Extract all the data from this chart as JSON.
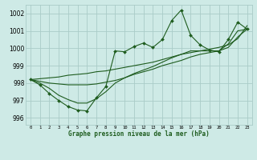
{
  "title": "Graphe pression niveau de la mer (hPa)",
  "background_color": "#ceeae6",
  "grid_color": "#aaccc8",
  "line_color": "#1e5c1e",
  "x_labels": [
    "0",
    "1",
    "2",
    "3",
    "4",
    "5",
    "6",
    "7",
    "8",
    "9",
    "10",
    "11",
    "12",
    "13",
    "14",
    "15",
    "16",
    "17",
    "18",
    "19",
    "20",
    "21",
    "22",
    "23"
  ],
  "ylim": [
    995.6,
    1002.5
  ],
  "yticks": [
    996,
    997,
    998,
    999,
    1000,
    1001,
    1002
  ],
  "main_series": [
    998.2,
    997.9,
    997.4,
    997.0,
    996.65,
    996.45,
    996.4,
    997.15,
    997.8,
    999.85,
    999.8,
    1000.1,
    1000.3,
    1000.05,
    1000.5,
    1001.6,
    1002.2,
    1000.75,
    1000.2,
    999.9,
    999.8,
    1000.5,
    1001.5,
    1001.1
  ],
  "trend_line1": [
    998.2,
    998.25,
    998.3,
    998.35,
    998.45,
    998.5,
    998.55,
    998.65,
    998.7,
    998.8,
    998.9,
    999.0,
    999.1,
    999.2,
    999.35,
    999.5,
    999.65,
    999.75,
    999.85,
    999.95,
    1000.05,
    1000.2,
    1000.55,
    1001.3
  ],
  "trend_line2": [
    998.2,
    998.1,
    998.0,
    997.95,
    997.9,
    997.9,
    997.9,
    997.95,
    998.05,
    998.15,
    998.3,
    998.5,
    998.65,
    998.8,
    999.0,
    999.15,
    999.3,
    999.5,
    999.65,
    999.75,
    999.85,
    1000.05,
    1000.65,
    1001.1
  ],
  "trend_line3": [
    998.2,
    998.0,
    997.7,
    997.3,
    997.05,
    996.85,
    996.85,
    997.1,
    997.5,
    998.0,
    998.3,
    998.55,
    998.75,
    998.95,
    999.2,
    999.45,
    999.65,
    999.85,
    999.85,
    999.85,
    999.85,
    1000.25,
    1001.0,
    1001.1
  ]
}
